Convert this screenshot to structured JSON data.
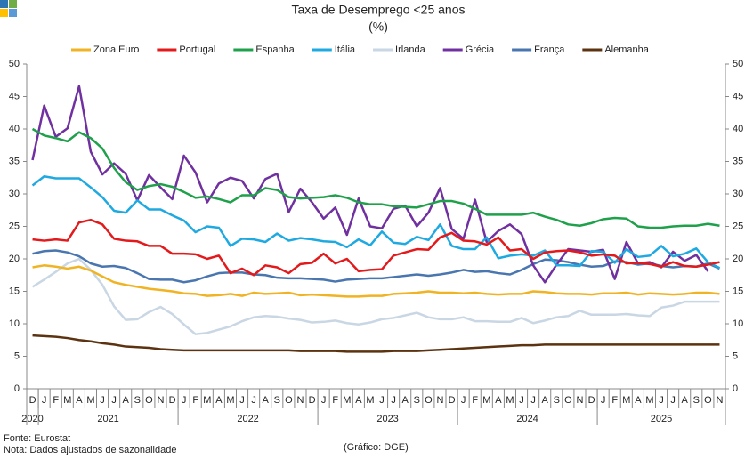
{
  "chart_data": {
    "type": "line",
    "title": "Taxa de Desemprego <25 anos",
    "subtitle": "(%)",
    "categories": [
      "D",
      "J",
      "F",
      "M",
      "A",
      "M",
      "J",
      "J",
      "A",
      "S",
      "O",
      "N",
      "D",
      "J",
      "F",
      "M",
      "A",
      "M",
      "J",
      "J",
      "A",
      "S",
      "O",
      "N",
      "D",
      "J",
      "F",
      "M",
      "A",
      "M",
      "J",
      "J",
      "A",
      "S",
      "O",
      "N",
      "D",
      "J",
      "F",
      "M",
      "A",
      "M",
      "J",
      "J",
      "A",
      "S",
      "O",
      "N",
      "D",
      "J",
      "F",
      "M",
      "A",
      "M",
      "J",
      "J",
      "A",
      "S",
      "O",
      "N"
    ],
    "years": [
      "2020",
      "2021",
      "2022",
      "2023",
      "2024",
      "2025"
    ],
    "ylim": [
      0,
      50
    ],
    "yticks": [
      0,
      5,
      10,
      15,
      20,
      25,
      30,
      35,
      40,
      45,
      50
    ],
    "y2lim": [
      0,
      50
    ],
    "y2ticks": [
      0,
      5,
      10,
      15,
      20,
      25,
      30,
      35,
      40,
      45,
      50
    ],
    "grid": false,
    "legend": "top",
    "series": [
      {
        "name": "Zona Euro",
        "color": "#f0b323",
        "values": [
          18.7,
          19,
          18.8,
          18.5,
          18.8,
          18.2,
          17.3,
          16.4,
          16,
          15.7,
          15.4,
          15.2,
          15,
          14.7,
          14.6,
          14.3,
          14.4,
          14.6,
          14.3,
          14.8,
          14.6,
          14.7,
          14.8,
          14.4,
          14.5,
          14.4,
          14.3,
          14.2,
          14.2,
          14.3,
          14.3,
          14.6,
          14.7,
          14.8,
          15,
          14.8,
          14.8,
          14.7,
          14.8,
          14.6,
          14.5,
          14.6,
          14.6,
          15,
          14.9,
          14.7,
          14.6,
          14.6,
          14.5,
          14.7,
          14.7,
          14.8,
          14.5,
          14.7,
          14.6,
          14.5,
          14.6,
          14.8,
          14.8,
          14.6
        ]
      },
      {
        "name": "Portugal",
        "color": "#e31a1c",
        "values": [
          23,
          22.8,
          23,
          22.8,
          25.6,
          26,
          25.3,
          23.1,
          22.8,
          22.7,
          22,
          22,
          20.8,
          20.8,
          20.7,
          20,
          20.5,
          17.8,
          18.5,
          17.5,
          19,
          18.7,
          17.8,
          19.2,
          19.4,
          20.8,
          19.3,
          20,
          18.1,
          18.3,
          18.4,
          20.5,
          21,
          21.5,
          21.4,
          23.3,
          24,
          22.8,
          22.7,
          22.2,
          23.3,
          21.3,
          21.5,
          20,
          21,
          21.2,
          21.3,
          21,
          20.5,
          20.7,
          20.5,
          19.3,
          19.4,
          19.2,
          18.8,
          19.5,
          18.9,
          18.8,
          19.1,
          19.5
        ]
      },
      {
        "name": "Espanha",
        "color": "#1fa04a",
        "values": [
          40,
          39,
          38.6,
          38.1,
          39.5,
          38.6,
          37,
          34,
          31.8,
          30.6,
          31.2,
          31.5,
          31.1,
          30.3,
          29.4,
          29.6,
          29.2,
          28.7,
          29.8,
          29.8,
          30.9,
          30.6,
          29.5,
          29.3,
          29.4,
          29.5,
          29.8,
          29.4,
          28.7,
          28.4,
          28.4,
          28.1,
          28,
          27.9,
          28.4,
          28.9,
          28.9,
          28.5,
          27.7,
          26.8,
          26.8,
          26.8,
          26.8,
          27.1,
          26.5,
          26,
          25.3,
          25.1,
          25.5,
          26.1,
          26.3,
          26.2,
          25,
          24.8,
          24.8,
          25,
          25.1,
          25.1,
          25.4,
          25.1
        ]
      },
      {
        "name": "Itália",
        "color": "#1fa9e1",
        "values": [
          31.3,
          32.7,
          32.4,
          32.4,
          32.4,
          31,
          29.5,
          27.4,
          27.1,
          29,
          27.6,
          27.6,
          26.7,
          25.9,
          24.1,
          25,
          24.8,
          22,
          23.1,
          23,
          22.6,
          23.9,
          22.8,
          23.2,
          23,
          22.7,
          22.6,
          21.8,
          23,
          22.1,
          24.2,
          22.5,
          22.3,
          23.4,
          22.9,
          25.3,
          22,
          21.5,
          21.5,
          23.3,
          20.1,
          20.5,
          20.7,
          20.5,
          21.3,
          19,
          19,
          18.9,
          21.2,
          21.1,
          19.4,
          21.5,
          20.3,
          20.5,
          22,
          20.4,
          20.8,
          21.6,
          19.5,
          18.6
        ]
      },
      {
        "name": "Irlanda",
        "color": "#c9d6e3",
        "values": [
          15.7,
          16.8,
          18,
          19.3,
          20,
          18.3,
          16,
          12.7,
          10.6,
          10.7,
          11.8,
          12.6,
          11.5,
          9.9,
          8.4,
          8.6,
          9.1,
          9.6,
          10.4,
          11,
          11.2,
          11.1,
          10.8,
          10.6,
          10.2,
          10.3,
          10.5,
          10.1,
          9.9,
          10.2,
          10.7,
          10.9,
          11.3,
          11.7,
          11,
          10.7,
          10.7,
          11,
          10.4,
          10.4,
          10.3,
          10.3,
          10.9,
          10.1,
          10.5,
          11,
          11.2,
          12,
          11.4,
          11.4,
          11.4,
          11.5,
          11.3,
          11.2,
          12.5,
          12.8,
          13.4,
          13.4,
          13.4,
          13.4
        ]
      },
      {
        "name": "Grécia",
        "color": "#7030a0",
        "values": [
          35.2,
          43.6,
          38.8,
          40.1,
          46.6,
          36.5,
          33,
          34.7,
          33.1,
          29,
          32.9,
          31,
          29.2,
          35.9,
          33.3,
          28.7,
          31.6,
          32.5,
          32,
          29.3,
          32.3,
          33.1,
          27.2,
          30.8,
          28.7,
          26.2,
          27.9,
          23.7,
          29.3,
          25,
          24.7,
          27.7,
          28.2,
          25,
          27.1,
          30.9,
          24.6,
          23.1,
          29.1,
          22.6,
          24.3,
          25.3,
          23.8,
          19,
          16.4,
          19.1,
          21.5,
          21.3,
          21.1,
          21.4,
          16.9,
          22.6,
          19.3,
          19.5,
          18.7,
          21.1,
          19.7,
          20.6,
          18.1,
          null
        ]
      },
      {
        "name": "França",
        "color": "#4a76b0",
        "values": [
          20.8,
          21.2,
          21.3,
          21,
          20.4,
          19.3,
          18.8,
          18.9,
          18.6,
          17.8,
          16.9,
          16.8,
          16.8,
          16.4,
          16.7,
          17.3,
          17.8,
          17.9,
          17.9,
          17.6,
          17.5,
          17.1,
          17,
          17,
          16.9,
          16.8,
          16.5,
          16.8,
          16.9,
          17,
          17,
          17.2,
          17.4,
          17.6,
          17.4,
          17.6,
          17.9,
          18.3,
          18,
          18.1,
          17.8,
          17.6,
          18.3,
          19.2,
          19.9,
          19.8,
          19.5,
          19.1,
          18.8,
          18.9,
          19.6,
          19.5,
          19.1,
          19.3,
          18.9,
          18.7,
          18.9,
          18.8,
          19.3,
          18.5
        ]
      },
      {
        "name": "Alemanha",
        "color": "#5c3310",
        "values": [
          8.2,
          8.1,
          8,
          7.8,
          7.5,
          7.3,
          7,
          6.8,
          6.5,
          6.4,
          6.3,
          6.1,
          6,
          5.9,
          5.9,
          5.9,
          5.9,
          5.9,
          5.9,
          5.9,
          5.9,
          5.9,
          5.9,
          5.8,
          5.8,
          5.8,
          5.8,
          5.7,
          5.7,
          5.7,
          5.7,
          5.8,
          5.8,
          5.8,
          5.9,
          6,
          6.1,
          6.2,
          6.3,
          6.4,
          6.5,
          6.6,
          6.7,
          6.7,
          6.8,
          6.8,
          6.8,
          6.8,
          6.8,
          6.8,
          6.8,
          6.8,
          6.8,
          6.8,
          6.8,
          6.8,
          6.8,
          6.8,
          6.8,
          6.8
        ]
      }
    ],
    "source": "Fonte: Eurostat",
    "note": "Nota: Dados ajustados de sazonalidade",
    "credit": "(Gráfico: DGE)"
  }
}
